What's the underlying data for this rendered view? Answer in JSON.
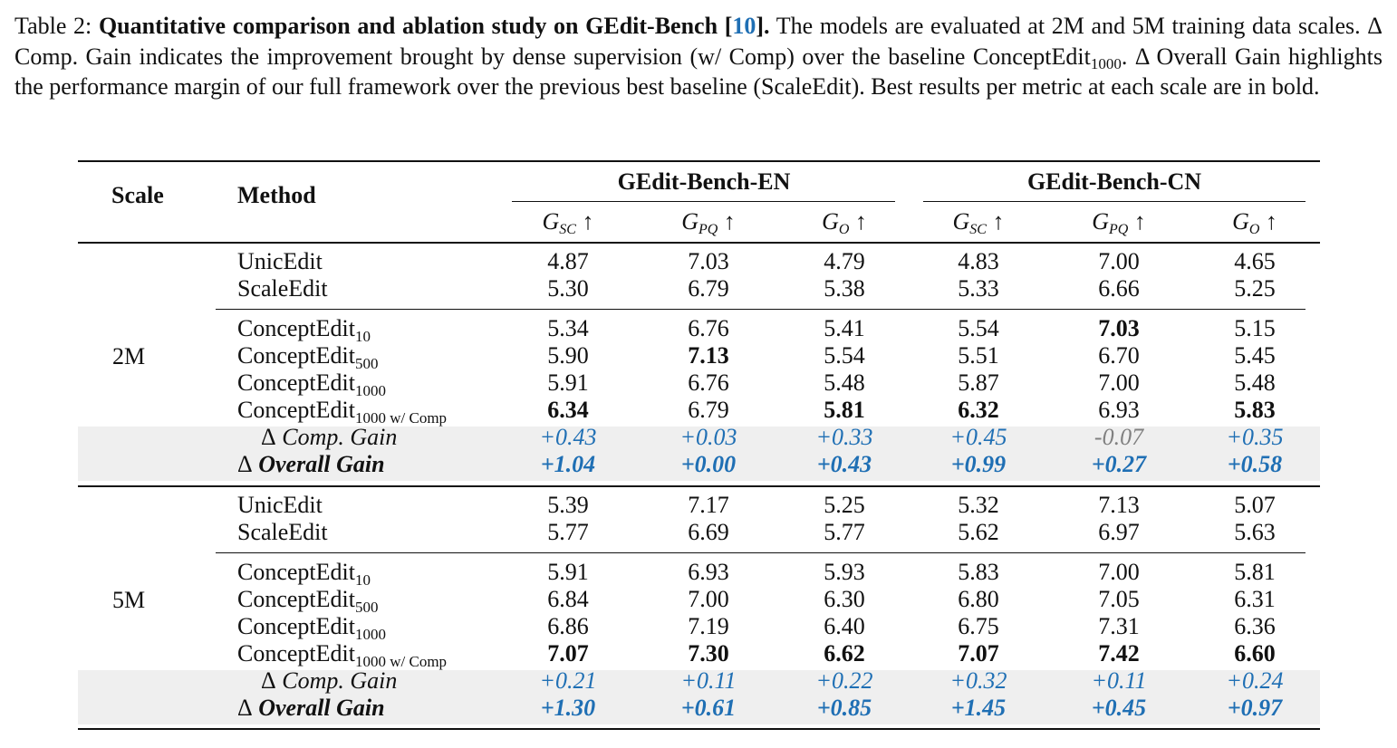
{
  "caption": {
    "label": "Table 2:",
    "title": "Quantitative comparison and ablation study on GEdit-Bench [",
    "cite": "10",
    "title_end": "].",
    "text1": " The models are evaluated at 2M and 5M training data scales. Δ Comp. Gain indicates the improvement brought by dense supervision (w/ Comp) over the baseline ConceptEdit",
    "text1_sub": "1000",
    "text2": ". Δ Overall Gain highlights the performance margin of our full framework over the previous best baseline (ScaleEdit). Best results per metric at each scale are in bold."
  },
  "header": {
    "scale": "Scale",
    "method": "Method",
    "group_en": "GEdit-Bench-EN",
    "group_cn": "GEdit-Bench-CN",
    "metrics": [
      {
        "base": "G",
        "sub": "SC",
        "arrow": "↑"
      },
      {
        "base": "G",
        "sub": "PQ",
        "arrow": "↑"
      },
      {
        "base": "G",
        "sub": "O",
        "arrow": "↑"
      },
      {
        "base": "G",
        "sub": "SC",
        "arrow": "↑"
      },
      {
        "base": "G",
        "sub": "PQ",
        "arrow": "↑"
      },
      {
        "base": "G",
        "sub": "O",
        "arrow": "↑"
      }
    ]
  },
  "blocks": [
    {
      "scale": "2M",
      "rows": [
        {
          "name": "UnicEdit",
          "sub": "",
          "values": [
            "4.87",
            "7.03",
            "4.79",
            "4.83",
            "7.00",
            "4.65"
          ],
          "bold": []
        },
        {
          "name": "ScaleEdit",
          "sub": "",
          "values": [
            "5.30",
            "6.79",
            "5.38",
            "5.33",
            "6.66",
            "5.25"
          ],
          "bold": []
        },
        {
          "name": "ConceptEdit",
          "sub": "10",
          "values": [
            "5.34",
            "6.76",
            "5.41",
            "5.54",
            "7.03",
            "5.15"
          ],
          "bold": [
            4
          ]
        },
        {
          "name": "ConceptEdit",
          "sub": "500",
          "values": [
            "5.90",
            "7.13",
            "5.54",
            "5.51",
            "6.70",
            "5.45"
          ],
          "bold": [
            1
          ]
        },
        {
          "name": "ConceptEdit",
          "sub": "1000",
          "values": [
            "5.91",
            "6.76",
            "5.48",
            "5.87",
            "7.00",
            "5.48"
          ],
          "bold": []
        },
        {
          "name": "ConceptEdit",
          "sub": "1000 w/ Comp",
          "values": [
            "6.34",
            "6.79",
            "5.81",
            "6.32",
            "6.93",
            "5.83"
          ],
          "bold": [
            0,
            2,
            3,
            5
          ]
        }
      ],
      "comp_gain": {
        "label_sym": "Δ",
        "label": " Comp. Gain",
        "values": [
          "+0.43",
          "+0.03",
          "+0.33",
          "+0.45",
          "-0.07",
          "+0.35"
        ]
      },
      "overall_gain": {
        "label_sym": "Δ",
        "label": " Overall Gain",
        "values": [
          "+1.04",
          "+0.00",
          "+0.43",
          "+0.99",
          "+0.27",
          "+0.58"
        ]
      }
    },
    {
      "scale": "5M",
      "rows": [
        {
          "name": "UnicEdit",
          "sub": "",
          "values": [
            "5.39",
            "7.17",
            "5.25",
            "5.32",
            "7.13",
            "5.07"
          ],
          "bold": []
        },
        {
          "name": "ScaleEdit",
          "sub": "",
          "values": [
            "5.77",
            "6.69",
            "5.77",
            "5.62",
            "6.97",
            "5.63"
          ],
          "bold": []
        },
        {
          "name": "ConceptEdit",
          "sub": "10",
          "values": [
            "5.91",
            "6.93",
            "5.93",
            "5.83",
            "7.00",
            "5.81"
          ],
          "bold": []
        },
        {
          "name": "ConceptEdit",
          "sub": "500",
          "values": [
            "6.84",
            "7.00",
            "6.30",
            "6.80",
            "7.05",
            "6.31"
          ],
          "bold": []
        },
        {
          "name": "ConceptEdit",
          "sub": "1000",
          "values": [
            "6.86",
            "7.19",
            "6.40",
            "6.75",
            "7.31",
            "6.36"
          ],
          "bold": []
        },
        {
          "name": "ConceptEdit",
          "sub": "1000 w/ Comp",
          "values": [
            "7.07",
            "7.30",
            "6.62",
            "7.07",
            "7.42",
            "6.60"
          ],
          "bold": [
            0,
            1,
            2,
            3,
            4,
            5
          ]
        }
      ],
      "comp_gain": {
        "label_sym": "Δ",
        "label": " Comp. Gain",
        "values": [
          "+0.21",
          "+0.11",
          "+0.22",
          "+0.32",
          "+0.11",
          "+0.24"
        ]
      },
      "overall_gain": {
        "label_sym": "Δ",
        "label": " Overall Gain",
        "values": [
          "+1.30",
          "+0.61",
          "+0.85",
          "+1.45",
          "+0.45",
          "+0.97"
        ]
      }
    }
  ]
}
